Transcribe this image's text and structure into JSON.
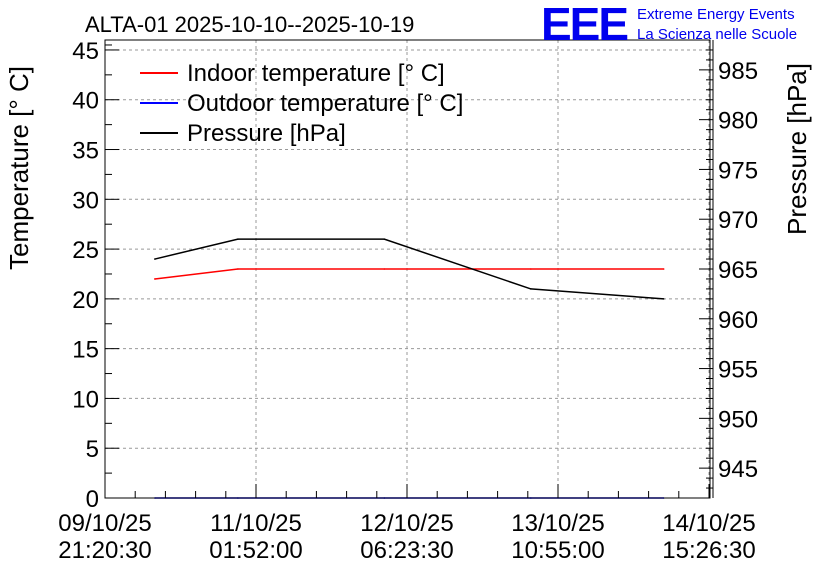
{
  "chart_data": {
    "type": "line",
    "title": "ALTA-01 2025-10-10--2025-10-19",
    "ylabel": "Temperature [° C]",
    "y2label": "Pressure [hPa]",
    "ylim": [
      0,
      46
    ],
    "y2lim": [
      942,
      988
    ],
    "yticks": [
      "0",
      "5",
      "10",
      "15",
      "20",
      "25",
      "30",
      "35",
      "40",
      "45"
    ],
    "y2ticks": [
      "945",
      "950",
      "955",
      "960",
      "965",
      "970",
      "975",
      "980",
      "985"
    ],
    "xtick_labels": [
      {
        "date": "09/10/25",
        "time": "21:20:30"
      },
      {
        "date": "11/10/25",
        "time": "01:52:00"
      },
      {
        "date": "12/10/25",
        "time": "06:23:30"
      },
      {
        "date": "13/10/25",
        "time": "10:55:00"
      },
      {
        "date": "14/10/25",
        "time": "15:26:30"
      }
    ],
    "x": [
      0.33,
      0.88,
      1.85,
      2.82,
      3.7
    ],
    "grid": true,
    "legend_position": "top-left",
    "series": [
      {
        "name": "Indoor temperature [° C]",
        "axis": "left",
        "color": "#ff0000",
        "values": [
          22,
          23,
          23,
          23,
          23
        ]
      },
      {
        "name": "Outdoor temperature [° C]",
        "axis": "left",
        "color": "#0000ff",
        "values": [
          0,
          0,
          0,
          0,
          0
        ]
      },
      {
        "name": "Pressure [hPa]",
        "axis": "right",
        "color": "#000000",
        "values": [
          966,
          968,
          968,
          963,
          962
        ]
      }
    ]
  },
  "logo": {
    "letters": "EEE",
    "line1": "Extreme Energy Events",
    "line2": "La Scienza nelle Scuole",
    "color": "#0000ee"
  }
}
